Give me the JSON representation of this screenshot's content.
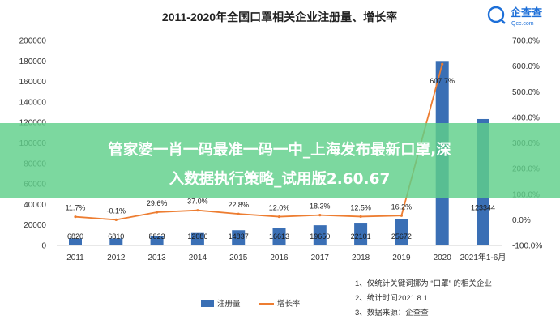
{
  "logo": {
    "name": "企查查",
    "domain": "Qcc.com",
    "color": "#1d6fd8"
  },
  "banner": {
    "line1": "管家婆一肖一码最准一码一中_上海发布最新口罩,深",
    "line2": "入数据执行策略_试用版2.60.67",
    "color": "#5fd08a"
  },
  "notes": [
    "1、仅统计关键词挪为 “口罩” 的相关企业",
    "2、统计时间2021.8.1",
    "3、数据来源：企查查"
  ],
  "chart_data": {
    "type": "bar+line",
    "title": "2011-2020年全国口罩相关企业注册量、增长率",
    "categories": [
      "2011",
      "2012",
      "2013",
      "2014",
      "2015",
      "2016",
      "2017",
      "2018",
      "2019",
      "2020",
      "2021年1-6月"
    ],
    "series": [
      {
        "name": "注册量",
        "type": "bar",
        "axis": "left",
        "color": "#3a6fb5",
        "values": [
          6820,
          6810,
          8823,
          12086,
          14837,
          16613,
          19650,
          22101,
          25672,
          180000,
          123344
        ],
        "labels": [
          "6820",
          "6810",
          "8823",
          "12086",
          "14837",
          "16613",
          "19650",
          "22101",
          "25672",
          "",
          "123344"
        ]
      },
      {
        "name": "增长率",
        "type": "line",
        "axis": "right",
        "color": "#ed7d31",
        "values": [
          11.7,
          -0.1,
          29.6,
          37.0,
          22.8,
          12.0,
          18.3,
          12.5,
          16.2,
          607.7,
          null
        ],
        "labels": [
          "11.7%",
          "-0.1%",
          "29.6%",
          "37.0%",
          "22.8%",
          "12.0%",
          "18.3%",
          "12.5%",
          "16.2%",
          "607.7%",
          ""
        ]
      }
    ],
    "y_left": {
      "min": 0,
      "max": 200000,
      "ticks": [
        "0",
        "20000",
        "40000",
        "60000",
        "80000",
        "100000",
        "120000",
        "140000",
        "160000",
        "180000",
        "200000"
      ]
    },
    "y_right": {
      "min": -100,
      "max": 700,
      "ticks": [
        "-100.0%",
        "0.0%",
        "100.0%",
        "200.0%",
        "300.0%",
        "400.0%",
        "500.0%",
        "600.0%",
        "700.0%"
      ]
    },
    "grid": false,
    "legend_position": "bottom-left"
  }
}
